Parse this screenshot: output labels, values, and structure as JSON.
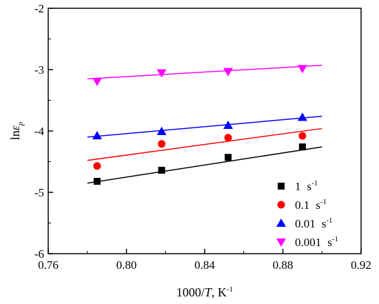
{
  "chart_data": {
    "type": "scatter",
    "xlabel": {
      "prefix": "1000/",
      "var": "T",
      "suffix": ", K",
      "sup": "-1"
    },
    "ylabel": {
      "prefix": "ln",
      "var": "ε",
      "sub": "p"
    },
    "xlim": [
      0.76,
      0.92
    ],
    "ylim": [
      -6,
      -2
    ],
    "xticks": [
      "0.76",
      "0.80",
      "0.84",
      "0.88",
      "0.92"
    ],
    "yticks": [
      "-6",
      "-5",
      "-4",
      "-3",
      "-2"
    ],
    "x": [
      0.785,
      0.818,
      0.852,
      0.89
    ],
    "legend_position": "bottom-right",
    "series": [
      {
        "name": "1",
        "unit": "s",
        "unit_sup": "-1",
        "color": "#000000",
        "marker": "square",
        "values": [
          -4.82,
          -4.64,
          -4.43,
          -4.26
        ],
        "fit": [
          [
            0.78,
            -4.85
          ],
          [
            0.9,
            -4.26
          ]
        ]
      },
      {
        "name": "0.1",
        "unit": "s",
        "unit_sup": "-1",
        "color": "#ff0000",
        "marker": "circle",
        "values": [
          -4.57,
          -4.21,
          -4.11,
          -4.08
        ],
        "fit": [
          [
            0.78,
            -4.48
          ],
          [
            0.9,
            -3.96
          ]
        ]
      },
      {
        "name": "0.01",
        "unit": "s",
        "unit_sup": "-1",
        "color": "#0000ff",
        "marker": "triangle-up",
        "values": [
          -4.08,
          -4.01,
          -3.91,
          -3.78
        ],
        "fit": [
          [
            0.78,
            -4.1
          ],
          [
            0.9,
            -3.76
          ]
        ]
      },
      {
        "name": "0.001",
        "unit": "s",
        "unit_sup": "-1",
        "color": "#ff00ff",
        "marker": "triangle-down",
        "values": [
          -3.19,
          -3.05,
          -3.03,
          -2.98
        ],
        "fit": [
          [
            0.78,
            -3.15
          ],
          [
            0.9,
            -2.93
          ]
        ]
      }
    ]
  }
}
